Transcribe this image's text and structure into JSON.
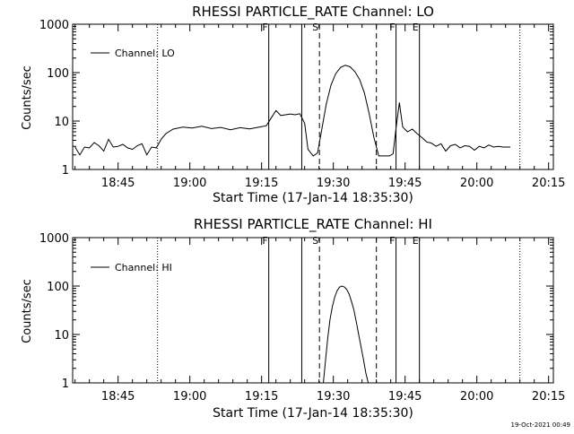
{
  "footer": {
    "timestamp": "19-Oct-2021 00:49"
  },
  "chart_data": [
    {
      "type": "line",
      "title": "RHESSI PARTICLE_RATE Channel: LO",
      "xlabel": "Start Time (17-Jan-14 18:35:30)",
      "ylabel": "Counts/sec",
      "x_unit": "minutes after 18:35:30 on 17-Jan-14",
      "xlim": [
        0,
        100.5
      ],
      "ylim": [
        1,
        1000
      ],
      "yscale": "log",
      "x_ticks": [
        "18:45",
        "19:00",
        "19:15",
        "19:30",
        "19:45",
        "20:00",
        "20:15"
      ],
      "y_ticks": [
        "1",
        "10",
        "100",
        "1000"
      ],
      "legend": {
        "position": "top-left",
        "entries": [
          "Channel: LO"
        ]
      },
      "markers": [
        {
          "label": "F",
          "x": 41.0,
          "style": "solid"
        },
        {
          "label": "",
          "x": 47.9,
          "style": "solid"
        },
        {
          "label": "S",
          "x": 51.6,
          "style": "dashed"
        },
        {
          "label": "",
          "x": 63.5,
          "style": "dashed"
        },
        {
          "label": "F",
          "x": 67.6,
          "style": "solid"
        },
        {
          "label": "E",
          "x": 72.5,
          "style": "solid"
        },
        {
          "label": "",
          "x": 17.75,
          "style": "dotted"
        },
        {
          "label": "",
          "x": 93.5,
          "style": "dotted"
        }
      ],
      "series": [
        {
          "name": "Channel: LO",
          "x": [
            0.5,
            1.5,
            2.5,
            3.5,
            4.5,
            5.5,
            6.5,
            7.5,
            8.5,
            9.5,
            10.5,
            11.5,
            12.5,
            13.5,
            14.5,
            15.5,
            16.5,
            17.5,
            18.5,
            19.5,
            21,
            23,
            25,
            27,
            29,
            31,
            33,
            35,
            37,
            39,
            40.5,
            41.5,
            42.5,
            43.5,
            44.5,
            45.5,
            46.5,
            47.5,
            48.5,
            49.2,
            50.3,
            51.2,
            52.0,
            53.0,
            54.0,
            55.0,
            56.0,
            57.0,
            58.0,
            59.0,
            60.0,
            61.0,
            62.0,
            63.0,
            64.0,
            65.2,
            66.2,
            67.0,
            67.6,
            68.3,
            69.0,
            70.0,
            71.0,
            72.0,
            73.0,
            74.0,
            75.0,
            76.0,
            77.0,
            78.0,
            79.0,
            80.0,
            81.0,
            82.0,
            83.0,
            84.0,
            85.0,
            86.0,
            87.0,
            88.0,
            89.0,
            90.0,
            91.5
          ],
          "y": [
            2.9,
            2.0,
            2.9,
            2.8,
            3.6,
            3.1,
            2.4,
            4.2,
            2.9,
            3.0,
            3.3,
            2.8,
            2.6,
            3.1,
            3.4,
            2.0,
            2.9,
            2.8,
            4.2,
            5.5,
            6.8,
            7.5,
            7.2,
            7.8,
            7.0,
            7.4,
            6.6,
            7.3,
            6.9,
            7.5,
            8.0,
            11.5,
            16.5,
            13.0,
            13.5,
            14.0,
            13.5,
            14.2,
            9.0,
            2.6,
            1.9,
            2.2,
            6.0,
            22.0,
            55.0,
            95.0,
            128.0,
            142.0,
            132.0,
            105.0,
            72.0,
            38.0,
            14.0,
            4.5,
            1.9,
            1.9,
            1.9,
            2.1,
            7.0,
            24.0,
            7.5,
            6.0,
            6.8,
            5.5,
            4.6,
            3.7,
            3.5,
            3.0,
            3.4,
            2.4,
            3.1,
            3.3,
            2.8,
            3.1,
            3.0,
            2.5,
            3.0,
            2.8,
            3.2,
            2.9,
            3.0,
            2.9,
            2.9
          ]
        }
      ]
    },
    {
      "type": "line",
      "title": "RHESSI PARTICLE_RATE Channel: HI",
      "xlabel": "Start Time (17-Jan-14 18:35:30)",
      "ylabel": "Counts/sec",
      "x_unit": "minutes after 18:35:30 on 17-Jan-14",
      "xlim": [
        0,
        100.5
      ],
      "ylim": [
        1,
        1000
      ],
      "yscale": "log",
      "x_ticks": [
        "18:45",
        "19:00",
        "19:15",
        "19:30",
        "19:45",
        "20:00",
        "20:15"
      ],
      "y_ticks": [
        "1",
        "10",
        "100",
        "1000"
      ],
      "legend": {
        "position": "top-left",
        "entries": [
          "Channel: HI"
        ]
      },
      "markers": [
        {
          "label": "F",
          "x": 41.0,
          "style": "solid"
        },
        {
          "label": "",
          "x": 47.9,
          "style": "solid"
        },
        {
          "label": "S",
          "x": 51.6,
          "style": "dashed"
        },
        {
          "label": "",
          "x": 63.5,
          "style": "dashed"
        },
        {
          "label": "F",
          "x": 67.6,
          "style": "solid"
        },
        {
          "label": "E",
          "x": 72.5,
          "style": "solid"
        },
        {
          "label": "",
          "x": 17.75,
          "style": "dotted"
        },
        {
          "label": "",
          "x": 93.5,
          "style": "dotted"
        }
      ],
      "series": [
        {
          "name": "Channel: HI",
          "x": [
            52.4,
            52.8,
            53.3,
            53.8,
            54.3,
            54.8,
            55.3,
            55.8,
            56.3,
            56.8,
            57.3,
            57.8,
            58.3,
            58.8,
            59.3,
            59.8,
            60.3,
            60.8,
            61.3,
            61.8
          ],
          "y": [
            1.0,
            2.5,
            8.0,
            20.0,
            38.0,
            60.0,
            80.0,
            95.0,
            100.0,
            96.0,
            85.0,
            68.0,
            48.0,
            32.0,
            18.0,
            10.0,
            5.5,
            3.0,
            1.6,
            1.0
          ]
        }
      ]
    }
  ]
}
